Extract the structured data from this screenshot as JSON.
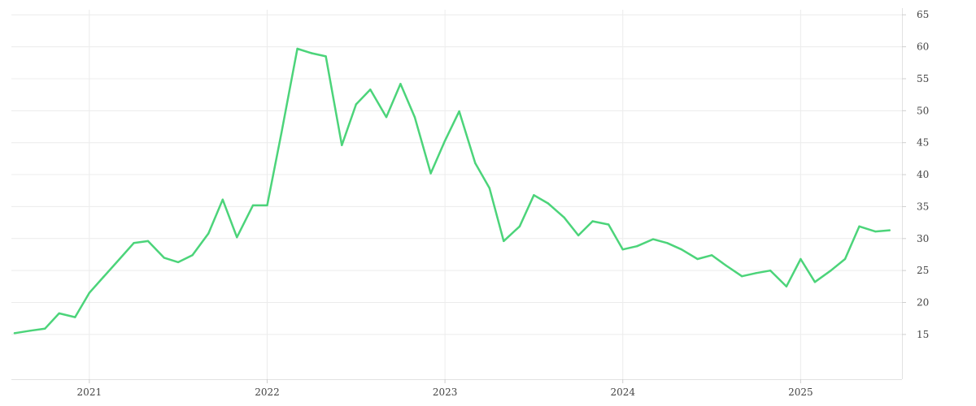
{
  "chart_data": {
    "type": "line",
    "title": "",
    "xlabel": "",
    "ylabel": "",
    "grid": true,
    "legend": "none",
    "x_ticks": [
      {
        "label": "2021",
        "value": 2021.0
      },
      {
        "label": "2022",
        "value": 2022.0
      },
      {
        "label": "2023",
        "value": 2023.0
      },
      {
        "label": "2024",
        "value": 2024.0
      },
      {
        "label": "2025",
        "value": 2025.0
      }
    ],
    "y_ticks": [
      15,
      20,
      25,
      30,
      35,
      40,
      45,
      50,
      55,
      60,
      65
    ],
    "xlim": [
      2020.58,
      2025.57
    ],
    "ylim": [
      8,
      66.3
    ],
    "series": [
      {
        "color": "#4cd47a",
        "points": [
          [
            2020.58,
            15.2
          ],
          [
            2020.67,
            15.6
          ],
          [
            2020.75,
            15.9
          ],
          [
            2020.83,
            18.3
          ],
          [
            2020.92,
            17.7
          ],
          [
            2021.0,
            21.5
          ],
          [
            2021.08,
            24.0
          ],
          [
            2021.17,
            26.8
          ],
          [
            2021.25,
            29.3
          ],
          [
            2021.33,
            29.6
          ],
          [
            2021.42,
            27.0
          ],
          [
            2021.5,
            26.3
          ],
          [
            2021.58,
            27.4
          ],
          [
            2021.67,
            30.8
          ],
          [
            2021.75,
            36.1
          ],
          [
            2021.83,
            30.2
          ],
          [
            2021.92,
            35.2
          ],
          [
            2022.0,
            35.2
          ],
          [
            2022.08,
            46.5
          ],
          [
            2022.17,
            59.7
          ],
          [
            2022.25,
            59.0
          ],
          [
            2022.33,
            58.5
          ],
          [
            2022.42,
            44.6
          ],
          [
            2022.5,
            51.0
          ],
          [
            2022.58,
            53.3
          ],
          [
            2022.67,
            49.0
          ],
          [
            2022.75,
            54.2
          ],
          [
            2022.83,
            49.0
          ],
          [
            2022.92,
            40.2
          ],
          [
            2023.0,
            45.3
          ],
          [
            2023.08,
            49.9
          ],
          [
            2023.17,
            41.8
          ],
          [
            2023.25,
            37.9
          ],
          [
            2023.33,
            29.6
          ],
          [
            2023.42,
            31.9
          ],
          [
            2023.5,
            36.8
          ],
          [
            2023.58,
            35.5
          ],
          [
            2023.67,
            33.3
          ],
          [
            2023.75,
            30.5
          ],
          [
            2023.83,
            32.7
          ],
          [
            2023.92,
            32.2
          ],
          [
            2024.0,
            28.3
          ],
          [
            2024.08,
            28.8
          ],
          [
            2024.17,
            29.9
          ],
          [
            2024.25,
            29.3
          ],
          [
            2024.33,
            28.3
          ],
          [
            2024.42,
            26.8
          ],
          [
            2024.5,
            27.4
          ],
          [
            2024.58,
            25.8
          ],
          [
            2024.67,
            24.1
          ],
          [
            2024.75,
            24.6
          ],
          [
            2024.83,
            25.0
          ],
          [
            2024.92,
            22.5
          ],
          [
            2025.0,
            26.8
          ],
          [
            2025.08,
            23.2
          ],
          [
            2025.17,
            25.0
          ],
          [
            2025.25,
            26.8
          ],
          [
            2025.33,
            31.9
          ],
          [
            2025.42,
            31.1
          ],
          [
            2025.5,
            31.3
          ]
        ]
      }
    ]
  }
}
